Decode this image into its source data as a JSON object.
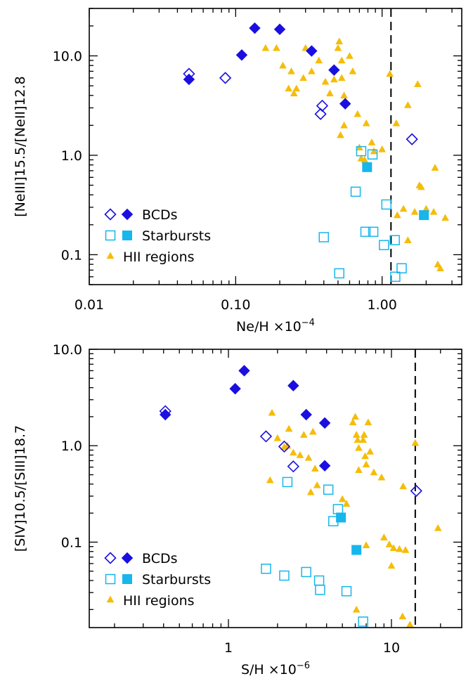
{
  "colors": {
    "bcd": "#1a0fe0",
    "starburst": "#17b6ec",
    "hii": "#f5bd0a",
    "axis": "#000000"
  },
  "chart_data": [
    {
      "type": "scatter",
      "title": "",
      "xlabel": "Ne/H ×10",
      "xlabel_exp": "−4",
      "ylabel": "[NeIII]15.5/[NeII]12.8",
      "xscale": "log",
      "yscale": "log",
      "xlim": [
        0.01,
        3.5
      ],
      "ylim": [
        0.05,
        30
      ],
      "xticks": [
        0.01,
        0.1,
        1.0
      ],
      "xtick_labels": [
        "0.01",
        "0.10",
        "1.00"
      ],
      "yticks": [
        0.1,
        1.0,
        10.0
      ],
      "ytick_labels": [
        "0.1",
        "1.0",
        "10.0"
      ],
      "vline": 1.15,
      "legend_position": "bottom-left",
      "legend": [
        "BCDs",
        "Starbursts",
        "HII regions"
      ],
      "series": [
        {
          "name": "BCDs",
          "marker": "diamond",
          "filled": true,
          "points": [
            [
              0.048,
              5.8
            ],
            [
              0.11,
              10.2
            ],
            [
              0.135,
              19
            ],
            [
              0.2,
              18.5
            ],
            [
              0.33,
              11.2
            ],
            [
              0.47,
              7.2
            ],
            [
              0.56,
              3.3
            ]
          ]
        },
        {
          "name": "BCDs",
          "marker": "diamond",
          "filled": false,
          "points": [
            [
              0.048,
              6.6
            ],
            [
              0.085,
              6
            ],
            [
              0.38,
              2.6
            ],
            [
              0.39,
              3.15
            ],
            [
              1.6,
              1.45
            ]
          ]
        },
        {
          "name": "Starbursts",
          "marker": "square",
          "filled": true,
          "points": [
            [
              0.79,
              0.76
            ],
            [
              1.93,
              0.25
            ]
          ]
        },
        {
          "name": "Starbursts",
          "marker": "square",
          "filled": false,
          "points": [
            [
              0.4,
              0.15
            ],
            [
              0.51,
              0.065
            ],
            [
              0.66,
              0.43
            ],
            [
              0.72,
              1.1
            ],
            [
              0.77,
              0.17
            ],
            [
              0.86,
              1.02
            ],
            [
              0.87,
              0.17
            ],
            [
              1.03,
              0.125
            ],
            [
              1.07,
              0.32
            ],
            [
              1.22,
              0.14
            ],
            [
              1.23,
              0.06
            ],
            [
              1.36,
              0.073
            ]
          ]
        },
        {
          "name": "HII regions",
          "marker": "triangle",
          "filled": true,
          "points": [
            [
              0.16,
              12
            ],
            [
              0.19,
              12
            ],
            [
              0.21,
              8
            ],
            [
              0.23,
              4.7
            ],
            [
              0.24,
              7
            ],
            [
              0.25,
              4.2
            ],
            [
              0.26,
              4.7
            ],
            [
              0.29,
              6
            ],
            [
              0.3,
              12
            ],
            [
              0.33,
              7
            ],
            [
              0.37,
              9
            ],
            [
              0.41,
              5.5
            ],
            [
              0.44,
              4.2
            ],
            [
              0.47,
              5.8
            ],
            [
              0.5,
              12
            ],
            [
              0.51,
              14
            ],
            [
              0.53,
              9
            ],
            [
              0.53,
              6
            ],
            [
              0.55,
              4
            ],
            [
              0.6,
              10
            ],
            [
              0.63,
              7
            ],
            [
              0.68,
              2.6
            ],
            [
              0.52,
              1.6
            ],
            [
              0.55,
              2
            ],
            [
              0.7,
              1.2
            ],
            [
              0.72,
              0.93
            ],
            [
              0.76,
              0.9
            ],
            [
              0.78,
              2.1
            ],
            [
              0.85,
              1.35
            ],
            [
              0.88,
              1.1
            ],
            [
              1.0,
              1.15
            ],
            [
              1.13,
              6.6
            ],
            [
              1.25,
              2.1
            ],
            [
              1.27,
              0.25
            ],
            [
              1.4,
              0.29
            ],
            [
              1.5,
              0.14
            ],
            [
              1.5,
              3.2
            ],
            [
              1.67,
              0.27
            ],
            [
              1.75,
              5.2
            ],
            [
              1.8,
              0.5
            ],
            [
              1.85,
              0.48
            ],
            [
              2.0,
              0.29
            ],
            [
              2.25,
              0.27
            ],
            [
              2.3,
              0.75
            ],
            [
              2.4,
              0.08
            ],
            [
              2.5,
              0.073
            ],
            [
              2.7,
              0.235
            ]
          ]
        }
      ]
    },
    {
      "type": "scatter",
      "title": "",
      "xlabel": "S/H ×10",
      "xlabel_exp": "−6",
      "ylabel": "[SIV]10.5/[SIII]18.7",
      "xscale": "log",
      "yscale": "log",
      "xlim": [
        0.14,
        27
      ],
      "ylim": [
        0.013,
        10
      ],
      "xticks": [
        1,
        10
      ],
      "xtick_labels": [
        "1",
        "10"
      ],
      "yticks": [
        0.1,
        1.0,
        10.0
      ],
      "ytick_labels": [
        "0.1",
        "1.0",
        "10.0"
      ],
      "vline": 14,
      "legend_position": "bottom-left",
      "legend": [
        "BCDs",
        "Starbursts",
        "HII regions"
      ],
      "series": [
        {
          "name": "BCDs",
          "marker": "diamond",
          "filled": true,
          "points": [
            [
              0.41,
              2.1
            ],
            [
              1.1,
              3.9
            ],
            [
              1.25,
              6
            ],
            [
              2.5,
              4.2
            ],
            [
              3.0,
              2.1
            ],
            [
              3.9,
              1.72
            ],
            [
              3.9,
              0.62
            ]
          ]
        },
        {
          "name": "BCDs",
          "marker": "diamond",
          "filled": false,
          "points": [
            [
              0.41,
              2.28
            ],
            [
              1.7,
              1.25
            ],
            [
              2.2,
              0.98
            ],
            [
              2.5,
              0.61
            ],
            [
              14.2,
              0.34
            ]
          ]
        },
        {
          "name": "Starbursts",
          "marker": "square",
          "filled": true,
          "points": [
            [
              4.9,
              0.18
            ],
            [
              6.1,
              0.083
            ]
          ]
        },
        {
          "name": "Starbursts",
          "marker": "square",
          "filled": false,
          "points": [
            [
              1.7,
              0.053
            ],
            [
              2.2,
              0.045
            ],
            [
              2.3,
              0.42
            ],
            [
              3.0,
              0.049
            ],
            [
              3.6,
              0.04
            ],
            [
              3.65,
              0.032
            ],
            [
              4.1,
              0.35
            ],
            [
              4.4,
              0.165
            ],
            [
              4.7,
              0.22
            ],
            [
              5.3,
              0.031
            ],
            [
              6.7,
              0.015
            ]
          ]
        },
        {
          "name": "HII regions",
          "marker": "triangle",
          "filled": true,
          "points": [
            [
              1.8,
              0.44
            ],
            [
              1.85,
              2.2
            ],
            [
              2.0,
              1.2
            ],
            [
              2.2,
              0.97
            ],
            [
              2.3,
              1.0
            ],
            [
              2.35,
              1.5
            ],
            [
              2.5,
              0.85
            ],
            [
              2.75,
              0.8
            ],
            [
              2.9,
              1.3
            ],
            [
              3.1,
              0.75
            ],
            [
              3.3,
              1.4
            ],
            [
              3.4,
              0.58
            ],
            [
              3.2,
              0.33
            ],
            [
              3.5,
              0.39
            ],
            [
              5.0,
              0.28
            ],
            [
              5.3,
              0.25
            ],
            [
              5.8,
              1.75
            ],
            [
              6.0,
              2.0
            ],
            [
              6.1,
              1.3
            ],
            [
              6.2,
              1.15
            ],
            [
              6.3,
              0.95
            ],
            [
              6.3,
              0.56
            ],
            [
              6.7,
              1.15
            ],
            [
              6.8,
              1.3
            ],
            [
              6.9,
              0.78
            ],
            [
              7.0,
              0.64
            ],
            [
              7.2,
              1.75
            ],
            [
              7.4,
              0.87
            ],
            [
              7.8,
              0.53
            ],
            [
              7.0,
              0.093
            ],
            [
              6.1,
              0.02
            ],
            [
              8.7,
              0.47
            ],
            [
              9.0,
              0.112
            ],
            [
              9.7,
              0.095
            ],
            [
              10.0,
              0.057
            ],
            [
              10.3,
              0.087
            ],
            [
              11.2,
              0.085
            ],
            [
              12.2,
              0.083
            ],
            [
              11.8,
              0.38
            ],
            [
              11.7,
              0.017
            ],
            [
              13.0,
              0.014
            ],
            [
              14.0,
              1.07
            ],
            [
              19.3,
              0.14
            ]
          ]
        }
      ]
    }
  ],
  "vline_hint": "dashed reference line"
}
